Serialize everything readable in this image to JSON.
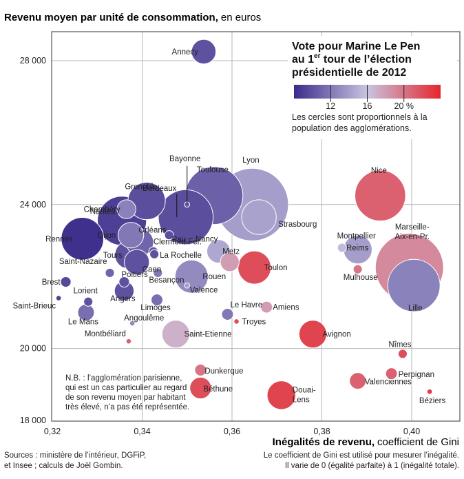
{
  "chart_data": {
    "type": "scatter",
    "title": "Revenu moyen par unité de consommation,",
    "title_unit": "en euros",
    "xlabel": "Inégalités de revenu,",
    "xlabel_unit": "coefficient de Gini",
    "xlabel_note_1": "Le coefficient de Gini est utilisé pour mesurer l’inégalité.",
    "xlabel_note_2": "Il varie de 0 (égalité parfaite) à 1 (inégalité totale).",
    "xlim": [
      0.32,
      0.405
    ],
    "ylim": [
      18000,
      29000
    ],
    "x_ticks": [
      0.32,
      0.34,
      0.36,
      0.38,
      0.4
    ],
    "x_tick_labels": [
      "0,32",
      "0,34",
      "0,36",
      "0,38",
      "0,40"
    ],
    "y_ticks": [
      18000,
      20000,
      24000,
      28000
    ],
    "y_tick_labels": [
      "18 000",
      "20 000",
      "24 000",
      "28 000"
    ],
    "grid": true,
    "legend": {
      "title_line1": "Vote pour Marine Le Pen",
      "title_line2_prefix": "au 1",
      "title_line2_sup": "er",
      "title_line2_suffix": " tour de l’élection",
      "title_line3": "présidentielle de 2012",
      "scale_min": 8,
      "scale_max": 24,
      "ticks": [
        12,
        16,
        20
      ],
      "tick_labels": [
        "12",
        "16",
        "20 %"
      ],
      "desc_line1": "Les cercles sont proportionnels à la",
      "desc_line2": "population des agglomérations.",
      "color_low": "#3a2c8a",
      "color_mid": "#c9c4e0",
      "color_high": "#e5262d",
      "placement": "top-right"
    },
    "note_lines": [
      "N.B. : l’agglomération parisienne,",
      "qui est un cas particulier au regard",
      "de son revenu moyen par habitant",
      "très élevé, n’a pas été représentée."
    ],
    "sources_lines": [
      "Sources : ministère de l’intérieur, DGFiP,",
      "et Insee ; calculs de Joël Gombin."
    ],
    "points": [
      {
        "name": "Annecy",
        "x": 0.3537,
        "y": 28250,
        "vote": 10.0,
        "pop": 220
      },
      {
        "name": "Grenoble",
        "x": 0.341,
        "y": 24100,
        "vote": 9.8,
        "pop": 510
      },
      {
        "name": "Chambéry",
        "x": 0.3365,
        "y": 23870,
        "vote": 12.5,
        "pop": 130
      },
      {
        "name": "Nantes",
        "x": 0.3355,
        "y": 23550,
        "vote": 9.0,
        "pop": 880
      },
      {
        "name": "Dijon",
        "x": 0.3375,
        "y": 23150,
        "vote": 12.0,
        "pop": 240
      },
      {
        "name": "Rennes",
        "x": 0.3267,
        "y": 23050,
        "vote": 8.2,
        "pop": 660
      },
      {
        "name": "Bayonne",
        "x": 0.35,
        "y": 24000,
        "vote": 10.5,
        "pop": 10
      },
      {
        "name": "Bordeaux",
        "x": 0.3497,
        "y": 23650,
        "vote": 9.8,
        "pop": 1100
      },
      {
        "name": "Toulouse",
        "x": 0.356,
        "y": 24250,
        "vote": 10.8,
        "pop": 1220
      },
      {
        "name": "Lyon",
        "x": 0.3645,
        "y": 24000,
        "vote": 14.0,
        "pop": 1920
      },
      {
        "name": "Strasbourg",
        "x": 0.366,
        "y": 23650,
        "vote": 14.2,
        "pop": 440
      },
      {
        "name": "Pau",
        "x": 0.346,
        "y": 23150,
        "vote": 9.8,
        "pop": 30
      },
      {
        "name": "Orléans",
        "x": 0.3395,
        "y": 22950,
        "vote": 11.0,
        "pop": 270
      },
      {
        "name": "Clermont-Fer.",
        "x": 0.3425,
        "y": 22700,
        "vote": 10.2,
        "pop": 30
      },
      {
        "name": "La Rochelle",
        "x": 0.3427,
        "y": 22620,
        "vote": 10.0,
        "pop": 30
      },
      {
        "name": "Nancy",
        "x": 0.357,
        "y": 22700,
        "vote": 14.5,
        "pop": 200
      },
      {
        "name": "Metz",
        "x": 0.3595,
        "y": 22400,
        "vote": 18.0,
        "pop": 130
      },
      {
        "name": "Reims",
        "x": 0.3845,
        "y": 22800,
        "vote": 15.5,
        "pop": 30
      },
      {
        "name": "Montpellier",
        "x": 0.388,
        "y": 22750,
        "vote": 14.0,
        "pop": 300
      },
      {
        "name": "Tours",
        "x": 0.337,
        "y": 22600,
        "vote": 10.0,
        "pop": 280
      },
      {
        "name": "Caen",
        "x": 0.3388,
        "y": 22400,
        "vote": 10.0,
        "pop": 230
      },
      {
        "name": "Saint-Nazaire",
        "x": 0.3328,
        "y": 22100,
        "vote": 11.0,
        "pop": 30
      },
      {
        "name": "Poitiers",
        "x": 0.336,
        "y": 21850,
        "vote": 10.0,
        "pop": 40
      },
      {
        "name": "Besançon",
        "x": 0.3435,
        "y": 22100,
        "vote": 12.0,
        "pop": 30
      },
      {
        "name": "Rouen",
        "x": 0.351,
        "y": 22000,
        "vote": 13.0,
        "pop": 400
      },
      {
        "name": "Toulon",
        "x": 0.365,
        "y": 22250,
        "vote": 22.0,
        "pop": 400
      },
      {
        "name": "Marseille-Aix-en-Pr.",
        "x": 0.3995,
        "y": 22250,
        "vote": 19.0,
        "pop": 1700
      },
      {
        "name": "Mulhouse",
        "x": 0.388,
        "y": 22200,
        "vote": 20.0,
        "pop": 30
      },
      {
        "name": "Lille",
        "x": 0.4005,
        "y": 21750,
        "vote": 12.5,
        "pop": 1000
      },
      {
        "name": "Brest",
        "x": 0.323,
        "y": 21850,
        "vote": 9.5,
        "pop": 40
      },
      {
        "name": "Angers",
        "x": 0.336,
        "y": 21600,
        "vote": 10.0,
        "pop": 140
      },
      {
        "name": "Valence",
        "x": 0.35,
        "y": 21750,
        "vote": 14.0,
        "pop": 10
      },
      {
        "name": "Lorient",
        "x": 0.328,
        "y": 21300,
        "vote": 10.0,
        "pop": 30
      },
      {
        "name": "Saint-Brieuc",
        "x": 0.3214,
        "y": 21400,
        "vote": 9.0,
        "pop": 10
      },
      {
        "name": "Le Mans",
        "x": 0.3275,
        "y": 21000,
        "vote": 11.5,
        "pop": 100
      },
      {
        "name": "Limoges",
        "x": 0.3433,
        "y": 21350,
        "vote": 11.5,
        "pop": 50
      },
      {
        "name": "Angoulême",
        "x": 0.3378,
        "y": 20700,
        "vote": 13.0,
        "pop": 10
      },
      {
        "name": "Le Havre",
        "x": 0.359,
        "y": 20950,
        "vote": 12.0,
        "pop": 50
      },
      {
        "name": "Amiens",
        "x": 0.3677,
        "y": 21150,
        "vote": 18.0,
        "pop": 50
      },
      {
        "name": "Troyes",
        "x": 0.361,
        "y": 20750,
        "vote": 22.0,
        "pop": 10
      },
      {
        "name": "Montbéliard",
        "x": 0.337,
        "y": 20200,
        "vote": 21.0,
        "pop": 10
      },
      {
        "name": "Saint-Etienne",
        "x": 0.3475,
        "y": 20400,
        "vote": 17.0,
        "pop": 280
      },
      {
        "name": "Avignon",
        "x": 0.378,
        "y": 20400,
        "vote": 22.5,
        "pop": 280
      },
      {
        "name": "Nice",
        "x": 0.393,
        "y": 24250,
        "vote": 21.0,
        "pop": 940
      },
      {
        "name": "Nîmes",
        "x": 0.398,
        "y": 19850,
        "vote": 22.0,
        "pop": 30
      },
      {
        "name": "Perpignan",
        "x": 0.3955,
        "y": 19300,
        "vote": 21.0,
        "pop": 50
      },
      {
        "name": "Béziers",
        "x": 0.404,
        "y": 18800,
        "vote": 23.0,
        "pop": 10
      },
      {
        "name": "Dunkerque",
        "x": 0.353,
        "y": 19400,
        "vote": 20.0,
        "pop": 50
      },
      {
        "name": "Béthune",
        "x": 0.353,
        "y": 18900,
        "vote": 22.0,
        "pop": 170
      },
      {
        "name": "Douai-Lens",
        "x": 0.371,
        "y": 18700,
        "vote": 22.5,
        "pop": 300
      },
      {
        "name": "Valenciennes",
        "x": 0.388,
        "y": 19100,
        "vote": 21.0,
        "pop": 100
      }
    ]
  }
}
